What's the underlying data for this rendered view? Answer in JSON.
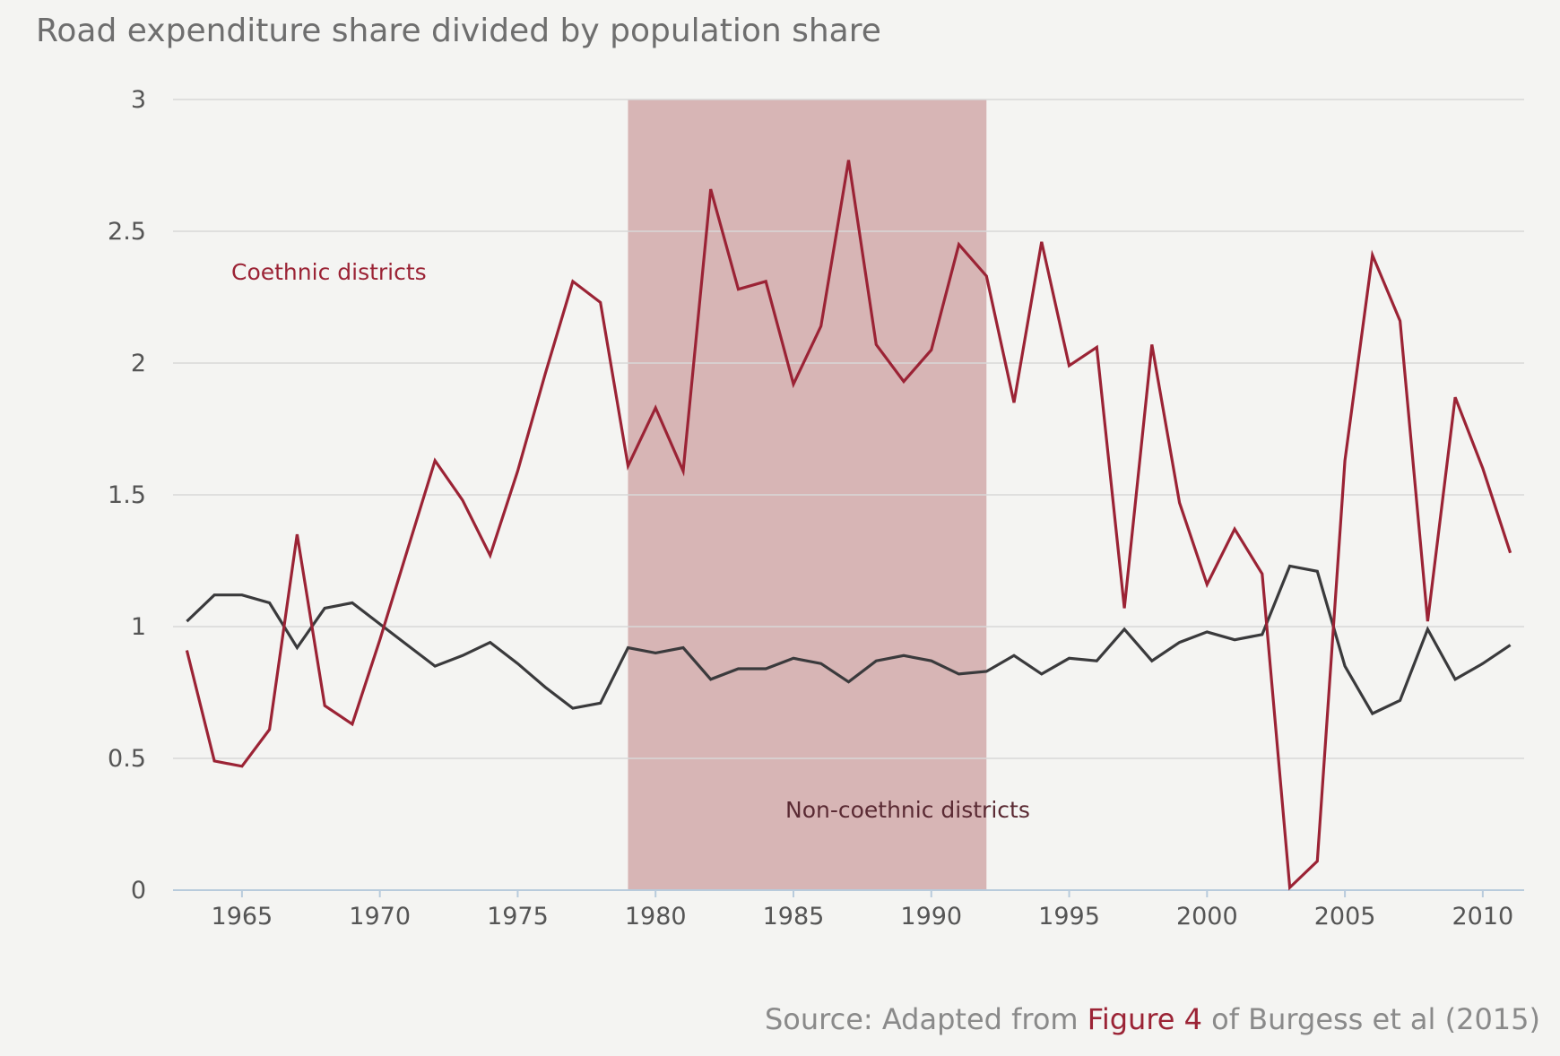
{
  "colors": {
    "coethnic": "#9b2335",
    "non_coethnic": "#3a3a3c",
    "shade": "#d7b5b5",
    "grid": "#d8d8d8",
    "axis": "#b8cbdc"
  },
  "source": {
    "prefix": "Source: Adapted from ",
    "link_text": "Figure 4",
    "suffix": " of Burgess et al (2015)"
  },
  "chart_data": {
    "type": "line",
    "title": "Road expenditure share divided by population share",
    "xlabel": "",
    "ylabel": "",
    "xlim": [
      1962.5,
      2011.5
    ],
    "ylim": [
      0,
      3
    ],
    "xticks": [
      1965,
      1970,
      1975,
      1980,
      1985,
      1990,
      1995,
      2000,
      2005,
      2010
    ],
    "yticks": [
      0,
      0.5,
      1,
      1.5,
      2,
      2.5,
      3
    ],
    "grid": "horizontal",
    "shaded_period": [
      1979,
      1992
    ],
    "x": [
      1963,
      1964,
      1965,
      1966,
      1967,
      1968,
      1969,
      1970,
      1971,
      1972,
      1973,
      1974,
      1975,
      1976,
      1977,
      1978,
      1979,
      1980,
      1981,
      1982,
      1983,
      1984,
      1985,
      1986,
      1987,
      1988,
      1989,
      1990,
      1991,
      1992,
      1993,
      1994,
      1995,
      1996,
      1997,
      1998,
      1999,
      2000,
      2001,
      2002,
      2003,
      2004,
      2005,
      2006,
      2007,
      2008,
      2009,
      2010,
      2011
    ],
    "series": [
      {
        "name": "Coethnic districts",
        "values": [
          0.91,
          0.49,
          0.47,
          0.61,
          1.35,
          0.7,
          0.63,
          0.95,
          1.29,
          1.63,
          1.48,
          1.27,
          1.59,
          1.96,
          2.31,
          2.23,
          1.61,
          1.83,
          1.59,
          2.66,
          2.28,
          2.31,
          1.92,
          2.14,
          2.77,
          2.07,
          1.93,
          2.05,
          2.45,
          2.33,
          1.85,
          2.46,
          1.99,
          2.06,
          1.07,
          2.07,
          1.47,
          1.16,
          1.37,
          1.2,
          0.01,
          0.11,
          1.63,
          2.41,
          2.16,
          1.02,
          1.87,
          1.6,
          1.28
        ]
      },
      {
        "name": "Non-coethnic districts",
        "values": [
          1.02,
          1.12,
          1.12,
          1.09,
          0.92,
          1.07,
          1.09,
          1.01,
          0.93,
          0.85,
          0.89,
          0.94,
          0.86,
          0.77,
          0.69,
          0.71,
          0.92,
          0.9,
          0.92,
          0.8,
          0.84,
          0.84,
          0.88,
          0.86,
          0.79,
          0.87,
          0.89,
          0.87,
          0.82,
          0.83,
          0.89,
          0.82,
          0.88,
          0.87,
          0.99,
          0.87,
          0.94,
          0.98,
          0.95,
          0.97,
          1.23,
          1.21,
          0.85,
          0.67,
          0.72,
          0.99,
          0.8,
          0.86,
          0.93
        ]
      }
    ]
  }
}
